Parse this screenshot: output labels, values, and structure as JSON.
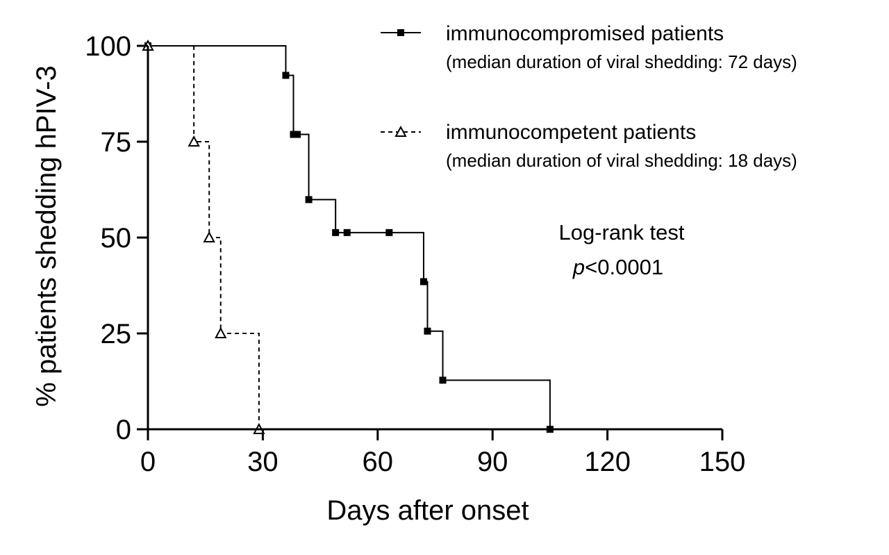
{
  "chart_data": {
    "type": "line",
    "subtype": "kaplan-meier-step",
    "xlabel": "Days after onset",
    "ylabel": "% patients shedding hPIV-3",
    "xlim": [
      0,
      150
    ],
    "ylim": [
      0,
      100
    ],
    "xticks": [
      "0",
      "30",
      "60",
      "90",
      "120",
      "150"
    ],
    "yticks": [
      "0",
      "25",
      "50",
      "75",
      "100"
    ],
    "series": [
      {
        "name": "immunocompromised patients",
        "note": "(median duration of viral shedding: 72 days)",
        "marker": "filled-square",
        "line": "solid",
        "steps": [
          [
            0,
            100
          ],
          [
            36,
            92.3
          ],
          [
            38,
            76.9
          ],
          [
            42,
            59.9
          ],
          [
            49,
            51.3
          ],
          [
            72,
            38.5
          ],
          [
            73,
            25.6
          ],
          [
            77,
            12.8
          ],
          [
            105,
            0
          ]
        ],
        "markers": [
          [
            0,
            100
          ],
          [
            36,
            92.3
          ],
          [
            38,
            76.9
          ],
          [
            39,
            76.9
          ],
          [
            42,
            59.9
          ],
          [
            49,
            51.3
          ],
          [
            52,
            51.3
          ],
          [
            63,
            51.3
          ],
          [
            72,
            38.5
          ],
          [
            73,
            25.6
          ],
          [
            77,
            12.8
          ],
          [
            105,
            0
          ]
        ]
      },
      {
        "name": "immunocompetent patients",
        "note": "(median duration of viral shedding: 18 days)",
        "marker": "open-triangle",
        "line": "dashed",
        "steps": [
          [
            0,
            100
          ],
          [
            12,
            75
          ],
          [
            16,
            50
          ],
          [
            19,
            25
          ],
          [
            29,
            0
          ]
        ],
        "markers": [
          [
            0,
            100
          ],
          [
            12,
            75
          ],
          [
            16,
            50
          ],
          [
            19,
            25
          ],
          [
            29,
            0
          ]
        ]
      }
    ],
    "annotation": {
      "line1": "Log-rank test",
      "p_symbol": "p",
      "p_value": "<0.0001"
    }
  }
}
